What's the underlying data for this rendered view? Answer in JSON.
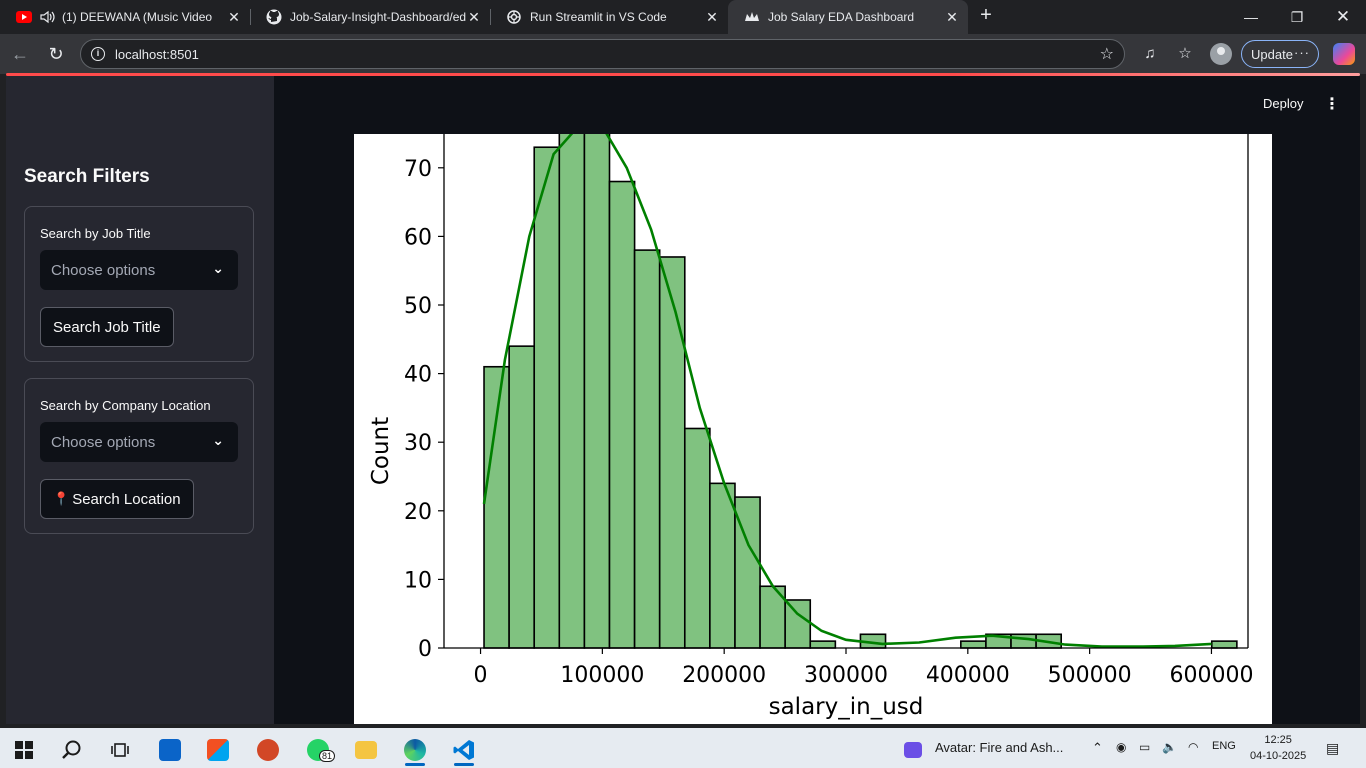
{
  "browser": {
    "tabs": [
      {
        "title": "(1) DEEWANA (Music Video)",
        "active": false
      },
      {
        "title": "Job-Salary-Insight-Dashboard/ed",
        "active": false
      },
      {
        "title": "Run Streamlit in VS Code",
        "active": false
      },
      {
        "title": "Job Salary EDA Dashboard",
        "active": true
      }
    ],
    "url": "localhost:8501",
    "update_label": "Update"
  },
  "header": {
    "deploy_label": "Deploy"
  },
  "sidebar": {
    "title": "Search Filters",
    "job_filter": {
      "label": "Search by Job Title",
      "placeholder": "Choose options",
      "button_label": "Search Job Title"
    },
    "location_filter": {
      "label": "Search by Company Location",
      "placeholder": "Choose options",
      "button_icon": "📍",
      "button_label": "Search Location"
    }
  },
  "chart_data": {
    "type": "bar",
    "subtype": "histogram-with-kde",
    "xlabel": "salary_in_usd",
    "ylabel": "Count",
    "xlim": [
      -30000,
      630000
    ],
    "ylim": [
      0,
      75
    ],
    "xticks": [
      0,
      100000,
      200000,
      300000,
      400000,
      500000,
      600000
    ],
    "yticks": [
      0,
      10,
      20,
      30,
      40,
      50,
      60,
      70
    ],
    "bin_width": 20600,
    "bins_start": 2859,
    "counts": [
      41,
      44,
      73,
      76,
      76,
      68,
      58,
      57,
      32,
      24,
      22,
      9,
      7,
      1,
      0,
      2,
      0,
      0,
      0,
      1,
      2,
      2,
      2,
      0,
      0,
      0,
      0,
      0,
      0,
      1
    ],
    "kde": {
      "x": [
        2859,
        20000,
        40000,
        60000,
        80000,
        100000,
        120000,
        140000,
        160000,
        180000,
        200000,
        220000,
        240000,
        260000,
        280000,
        300000,
        330000,
        360000,
        390000,
        420000,
        450000,
        480000,
        510000,
        540000,
        570000,
        600000
      ],
      "y": [
        21,
        42,
        60,
        72,
        76,
        76,
        70,
        61,
        49,
        35,
        24,
        15,
        9,
        5,
        2.5,
        1.2,
        0.6,
        0.8,
        1.5,
        1.8,
        1.3,
        0.5,
        0.2,
        0.2,
        0.3,
        0.6
      ]
    },
    "bar_color": "#80c280",
    "kde_color": "#008000"
  },
  "taskbar": {
    "notification_text": "Avatar: Fire and Ash...",
    "whatsapp_badge": "81",
    "language": "ENG",
    "time": "12:25",
    "date": "04-10-2025"
  }
}
